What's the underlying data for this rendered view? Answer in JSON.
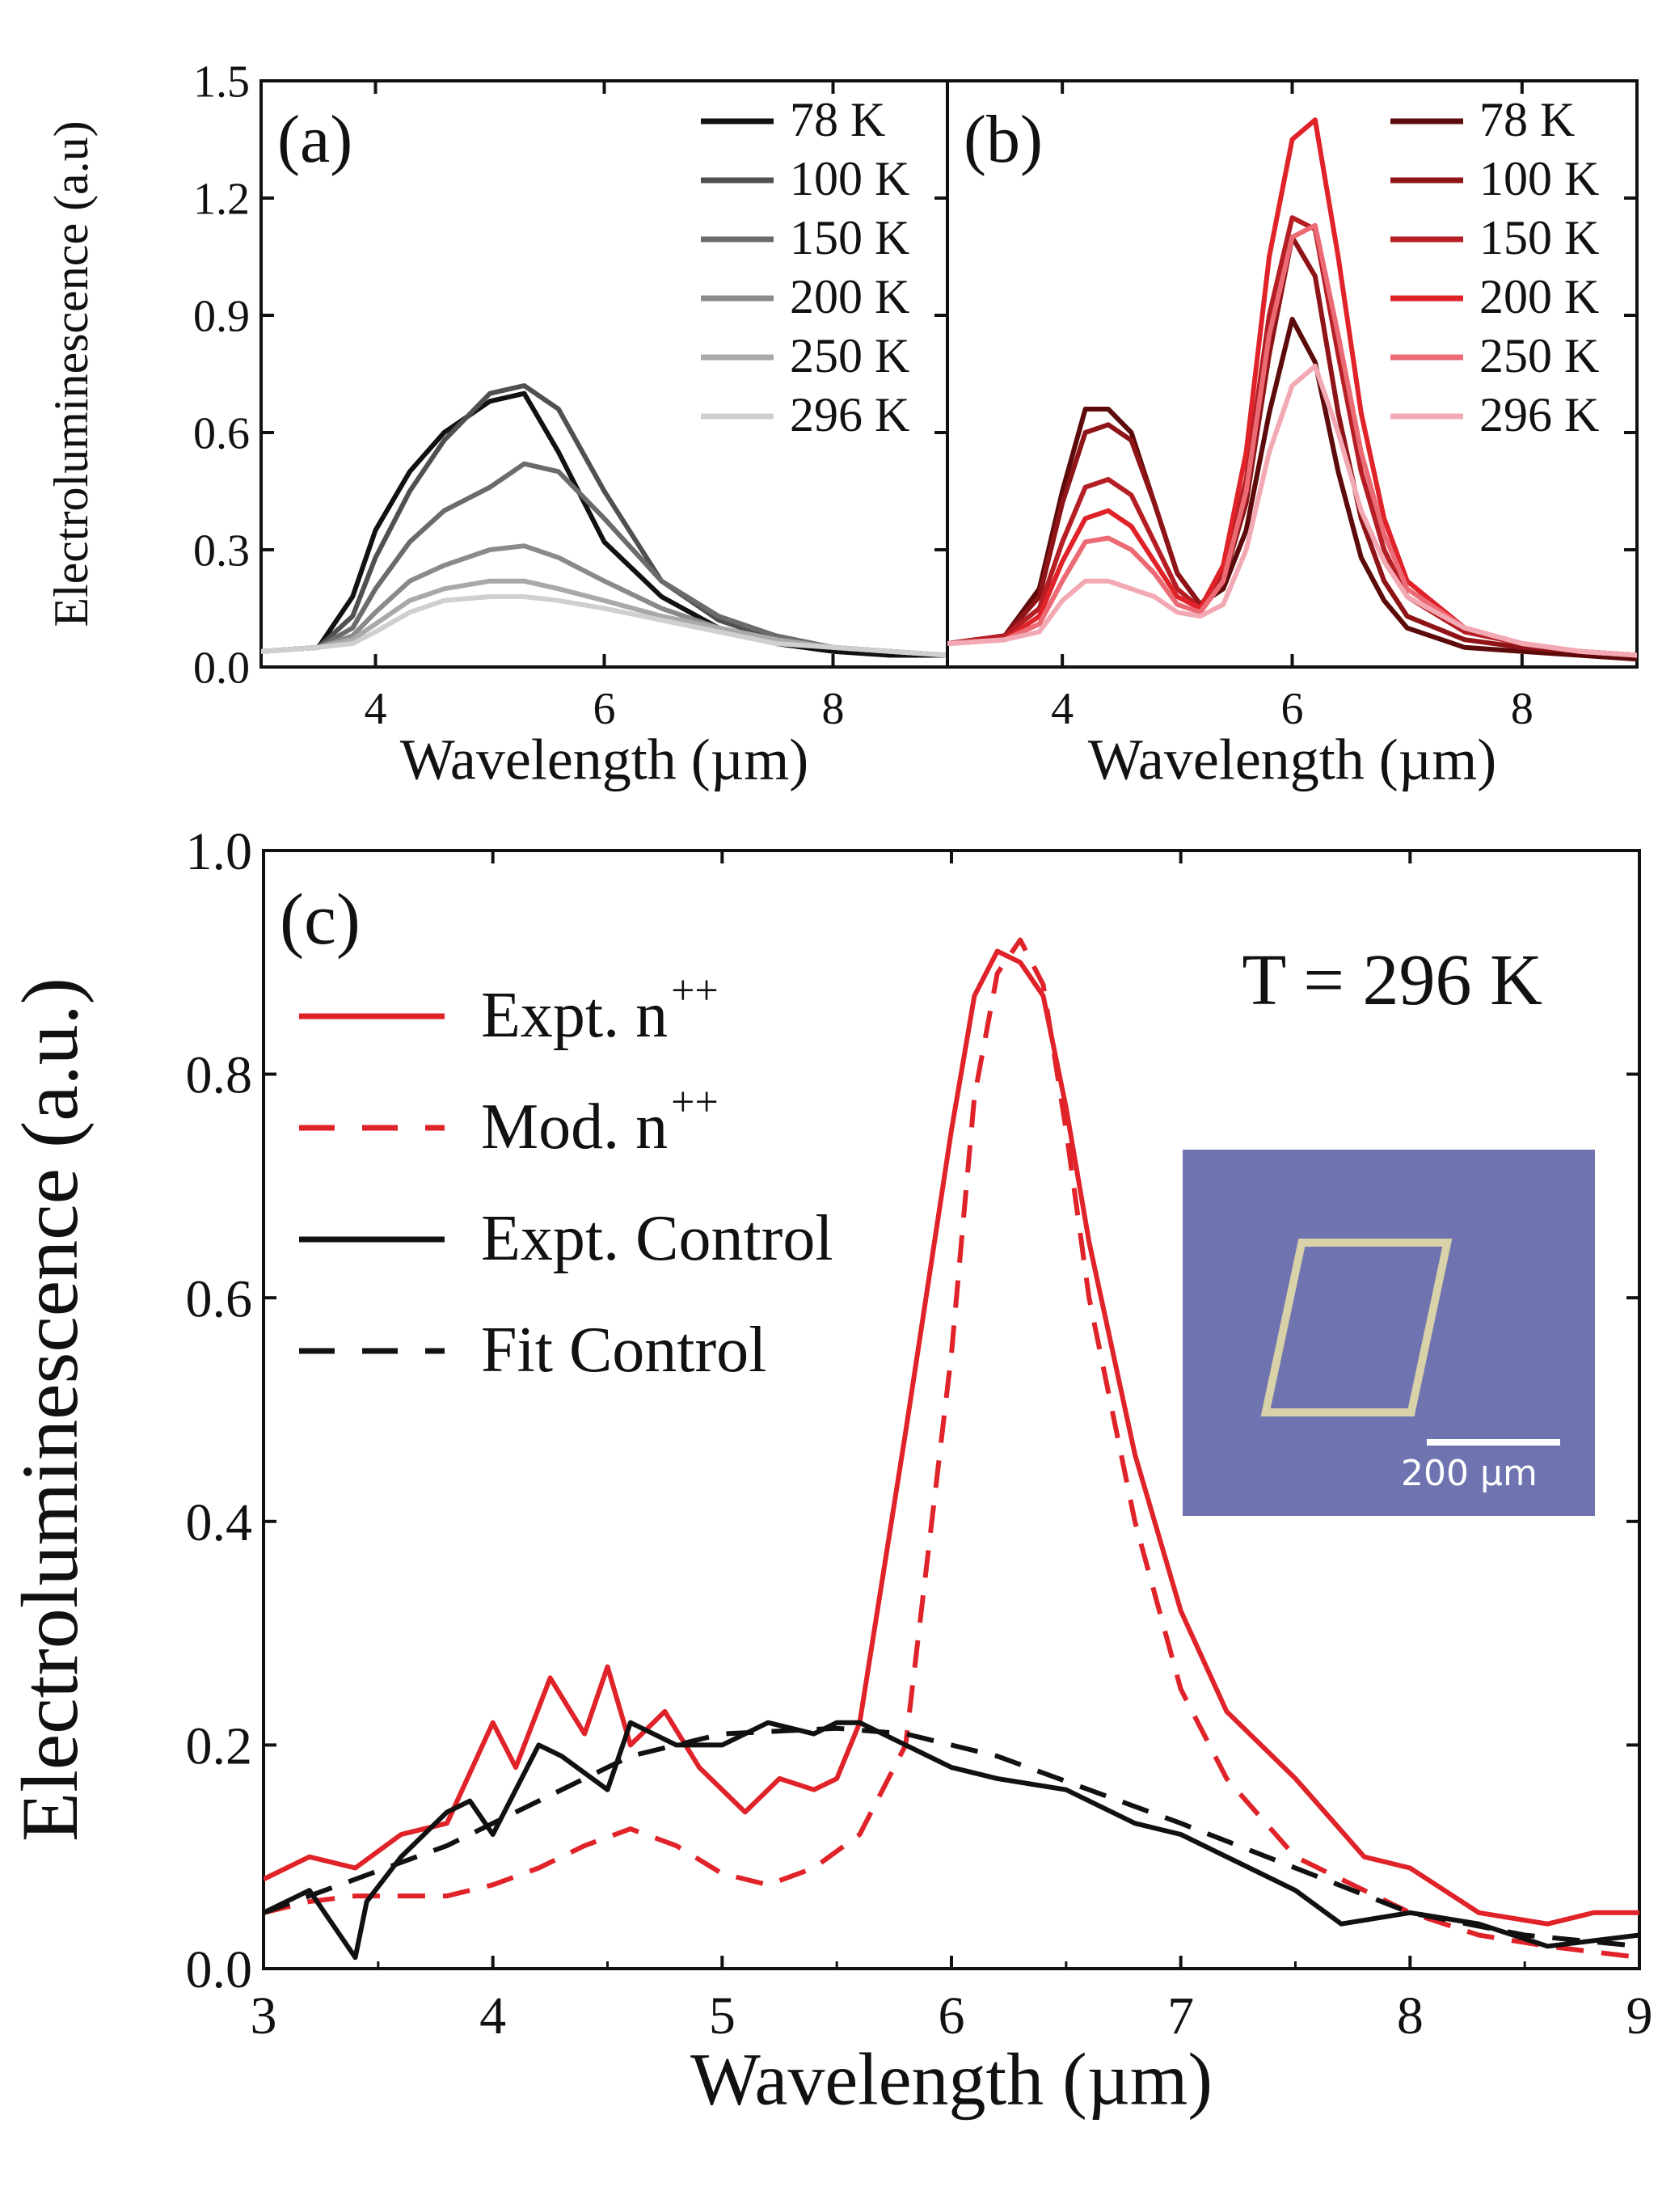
{
  "chart_data": [
    {
      "id": "a",
      "type": "line",
      "panel_label": "(a)",
      "xlabel": "Wavelength (µm)",
      "ylabel": "Electroluminescence (a.u)",
      "xlim": [
        3,
        9
      ],
      "ylim": [
        0,
        1.5
      ],
      "xticks": [
        4,
        6,
        8
      ],
      "yticks": [
        "0.0",
        "0.3",
        "0.6",
        "0.9",
        "1.2",
        "1.5"
      ],
      "legend_position": "top-right",
      "x": [
        3.0,
        3.5,
        3.8,
        4.0,
        4.3,
        4.6,
        5.0,
        5.3,
        5.6,
        6.0,
        6.5,
        7.0,
        7.5,
        8.0,
        8.5,
        9.0
      ],
      "series": [
        {
          "name": "78 K",
          "color": "#111111",
          "values": [
            0.04,
            0.05,
            0.18,
            0.35,
            0.5,
            0.6,
            0.68,
            0.7,
            0.55,
            0.32,
            0.18,
            0.1,
            0.06,
            0.04,
            0.03,
            0.03
          ]
        },
        {
          "name": "100 K",
          "color": "#505050",
          "values": [
            0.04,
            0.05,
            0.13,
            0.28,
            0.45,
            0.58,
            0.7,
            0.72,
            0.66,
            0.45,
            0.22,
            0.12,
            0.07,
            0.05,
            0.04,
            0.03
          ]
        },
        {
          "name": "150 K",
          "color": "#6b6b6b",
          "values": [
            0.04,
            0.05,
            0.1,
            0.2,
            0.32,
            0.4,
            0.46,
            0.52,
            0.5,
            0.38,
            0.22,
            0.13,
            0.08,
            0.05,
            0.04,
            0.03
          ]
        },
        {
          "name": "200 K",
          "color": "#8a8a8a",
          "values": [
            0.04,
            0.05,
            0.08,
            0.14,
            0.22,
            0.26,
            0.3,
            0.31,
            0.28,
            0.22,
            0.15,
            0.1,
            0.07,
            0.05,
            0.04,
            0.03
          ]
        },
        {
          "name": "250 K",
          "color": "#a9a9a9",
          "values": [
            0.04,
            0.05,
            0.07,
            0.11,
            0.17,
            0.2,
            0.22,
            0.22,
            0.2,
            0.17,
            0.13,
            0.1,
            0.07,
            0.05,
            0.04,
            0.03
          ]
        },
        {
          "name": "296 K",
          "color": "#cfcfcf",
          "values": [
            0.04,
            0.05,
            0.06,
            0.09,
            0.14,
            0.17,
            0.18,
            0.18,
            0.17,
            0.15,
            0.12,
            0.09,
            0.06,
            0.05,
            0.04,
            0.03
          ]
        }
      ]
    },
    {
      "id": "b",
      "type": "line",
      "panel_label": "(b)",
      "xlabel": "Wavelength (µm)",
      "ylabel": "",
      "xlim": [
        3,
        9
      ],
      "ylim": [
        0,
        1.5
      ],
      "xticks": [
        4,
        6,
        8
      ],
      "legend_position": "top-right",
      "x": [
        3.0,
        3.5,
        3.8,
        4.0,
        4.2,
        4.4,
        4.6,
        4.8,
        5.0,
        5.2,
        5.4,
        5.6,
        5.8,
        6.0,
        6.2,
        6.4,
        6.6,
        6.8,
        7.0,
        7.5,
        8.0,
        8.5,
        9.0
      ],
      "series": [
        {
          "name": "78 K",
          "color": "#5c0a0a",
          "values": [
            0.06,
            0.08,
            0.2,
            0.45,
            0.66,
            0.66,
            0.6,
            0.42,
            0.24,
            0.16,
            0.2,
            0.35,
            0.65,
            0.89,
            0.78,
            0.5,
            0.28,
            0.17,
            0.1,
            0.05,
            0.04,
            0.03,
            0.02
          ]
        },
        {
          "name": "100 K",
          "color": "#8e1418",
          "values": [
            0.06,
            0.08,
            0.18,
            0.42,
            0.6,
            0.62,
            0.58,
            0.42,
            0.24,
            0.16,
            0.22,
            0.42,
            0.8,
            1.1,
            1.0,
            0.65,
            0.38,
            0.22,
            0.13,
            0.07,
            0.05,
            0.04,
            0.03
          ]
        },
        {
          "name": "150 K",
          "color": "#b41e24",
          "values": [
            0.06,
            0.08,
            0.15,
            0.32,
            0.46,
            0.48,
            0.44,
            0.32,
            0.2,
            0.15,
            0.24,
            0.48,
            0.9,
            1.15,
            1.12,
            0.8,
            0.5,
            0.3,
            0.18,
            0.09,
            0.06,
            0.04,
            0.03
          ]
        },
        {
          "name": "200 K",
          "color": "#e02229",
          "values": [
            0.06,
            0.07,
            0.13,
            0.27,
            0.38,
            0.4,
            0.36,
            0.27,
            0.18,
            0.15,
            0.26,
            0.55,
            1.05,
            1.35,
            1.4,
            1.05,
            0.65,
            0.38,
            0.22,
            0.1,
            0.06,
            0.04,
            0.03
          ]
        },
        {
          "name": "250 K",
          "color": "#ec6a74",
          "values": [
            0.06,
            0.07,
            0.11,
            0.22,
            0.32,
            0.33,
            0.3,
            0.24,
            0.16,
            0.14,
            0.22,
            0.45,
            0.85,
            1.1,
            1.13,
            0.85,
            0.55,
            0.34,
            0.2,
            0.1,
            0.06,
            0.04,
            0.03
          ]
        },
        {
          "name": "296 K",
          "color": "#f3a9b3",
          "values": [
            0.06,
            0.07,
            0.09,
            0.17,
            0.22,
            0.22,
            0.2,
            0.18,
            0.14,
            0.13,
            0.16,
            0.3,
            0.55,
            0.72,
            0.77,
            0.6,
            0.4,
            0.27,
            0.18,
            0.1,
            0.06,
            0.04,
            0.03
          ]
        }
      ]
    },
    {
      "id": "c",
      "type": "line",
      "panel_label": "(c)",
      "annotation": "T = 296 K",
      "xlabel": "Wavelength (µm)",
      "ylabel": "Electroluminescence (a.u.)",
      "xlim": [
        3,
        9
      ],
      "ylim": [
        0,
        1.0
      ],
      "xticks": [
        3,
        4,
        5,
        6,
        7,
        8,
        9
      ],
      "yticks": [
        "0.0",
        "0.2",
        "0.4",
        "0.6",
        "0.8",
        "1.0"
      ],
      "legend_position": "top-left",
      "inset": {
        "scale_label": "200 µm"
      },
      "series": [
        {
          "name": "Expt. n",
          "sup": "++",
          "color": "#e02229",
          "dash": false,
          "x": [
            3.0,
            3.2,
            3.4,
            3.6,
            3.8,
            4.0,
            4.1,
            4.25,
            4.4,
            4.5,
            4.6,
            4.75,
            4.9,
            5.0,
            5.1,
            5.25,
            5.4,
            5.5,
            5.6,
            5.8,
            6.0,
            6.1,
            6.2,
            6.3,
            6.4,
            6.5,
            6.6,
            6.8,
            7.0,
            7.2,
            7.5,
            7.8,
            8.0,
            8.3,
            8.6,
            8.8,
            9.0
          ],
          "values": [
            0.08,
            0.1,
            0.09,
            0.12,
            0.13,
            0.22,
            0.18,
            0.26,
            0.21,
            0.27,
            0.2,
            0.23,
            0.18,
            0.16,
            0.14,
            0.17,
            0.16,
            0.17,
            0.22,
            0.48,
            0.75,
            0.87,
            0.91,
            0.9,
            0.87,
            0.77,
            0.65,
            0.46,
            0.32,
            0.23,
            0.17,
            0.1,
            0.09,
            0.05,
            0.04,
            0.05,
            0.05
          ]
        },
        {
          "name": "Mod. n",
          "sup": "++",
          "color": "#e02229",
          "dash": true,
          "x": [
            3.0,
            3.2,
            3.4,
            3.6,
            3.8,
            4.0,
            4.2,
            4.4,
            4.6,
            4.8,
            5.0,
            5.2,
            5.4,
            5.6,
            5.8,
            6.0,
            6.1,
            6.2,
            6.3,
            6.4,
            6.5,
            6.6,
            6.8,
            7.0,
            7.2,
            7.5,
            7.8,
            8.0,
            8.3,
            8.6,
            9.0
          ],
          "values": [
            0.05,
            0.06,
            0.065,
            0.065,
            0.065,
            0.075,
            0.09,
            0.11,
            0.125,
            0.11,
            0.085,
            0.075,
            0.09,
            0.12,
            0.2,
            0.55,
            0.78,
            0.89,
            0.92,
            0.88,
            0.75,
            0.6,
            0.4,
            0.25,
            0.17,
            0.1,
            0.07,
            0.05,
            0.03,
            0.02,
            0.01
          ]
        },
        {
          "name": "Expt. Control",
          "color": "#111111",
          "dash": false,
          "x": [
            3.0,
            3.2,
            3.4,
            3.45,
            3.6,
            3.8,
            3.9,
            4.0,
            4.2,
            4.3,
            4.5,
            4.6,
            4.8,
            5.0,
            5.2,
            5.4,
            5.5,
            5.6,
            5.8,
            6.0,
            6.2,
            6.5,
            6.8,
            7.0,
            7.3,
            7.5,
            7.7,
            8.0,
            8.3,
            8.6,
            9.0
          ],
          "values": [
            0.05,
            0.07,
            0.01,
            0.06,
            0.1,
            0.14,
            0.15,
            0.12,
            0.2,
            0.19,
            0.16,
            0.22,
            0.2,
            0.2,
            0.22,
            0.21,
            0.22,
            0.22,
            0.2,
            0.18,
            0.17,
            0.16,
            0.13,
            0.12,
            0.09,
            0.07,
            0.04,
            0.05,
            0.04,
            0.02,
            0.03
          ]
        },
        {
          "name": "Fit Control",
          "color": "#111111",
          "dash": true,
          "x": [
            3.0,
            3.4,
            3.8,
            4.2,
            4.6,
            5.0,
            5.5,
            5.8,
            6.2,
            6.6,
            7.0,
            7.5,
            8.0,
            8.5,
            9.0
          ],
          "values": [
            0.05,
            0.08,
            0.11,
            0.15,
            0.19,
            0.21,
            0.215,
            0.21,
            0.19,
            0.16,
            0.13,
            0.09,
            0.05,
            0.03,
            0.02
          ]
        }
      ]
    }
  ]
}
